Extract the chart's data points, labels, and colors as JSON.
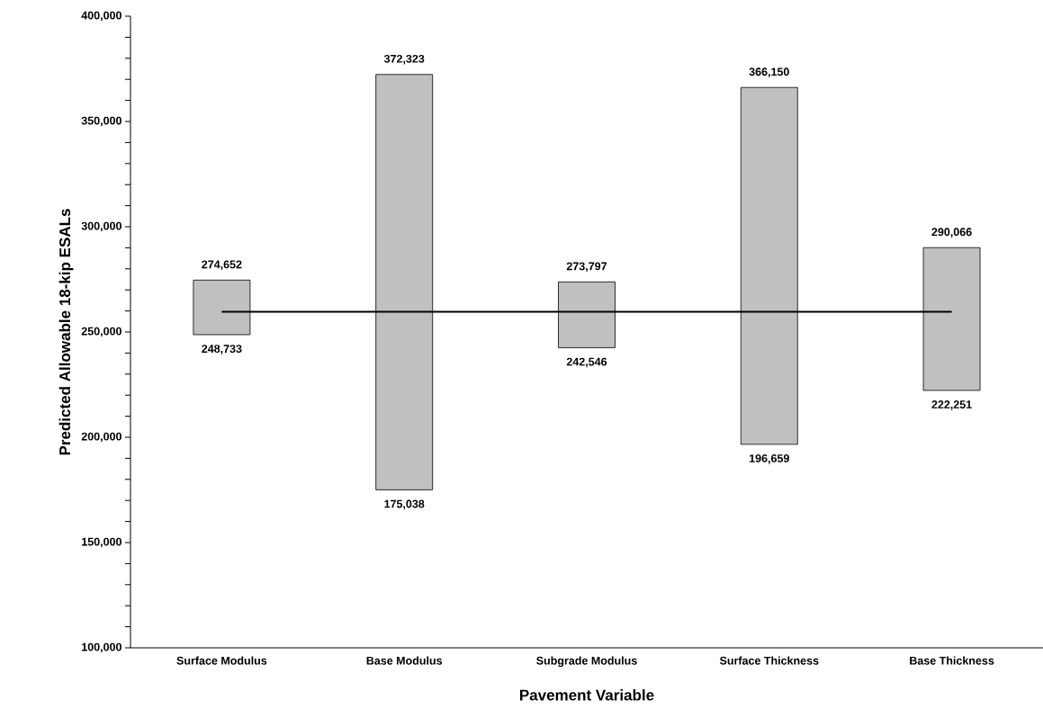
{
  "chart_data": {
    "type": "bar",
    "xlabel": "Pavement Variable",
    "ylabel": "Predicted Allowable 18-kip ESALs",
    "categories": [
      "Surface Modulus",
      "Base Modulus",
      "Subgrade Modulus",
      "Surface Thickness",
      "Base Thickness"
    ],
    "series": [
      {
        "color": "#c0c0c0",
        "base": [
          248733,
          175038,
          242546,
          196659,
          222251
        ],
        "values": [
          25919,
          197285,
          31251,
          169491,
          67815
        ]
      },
      {
        "type": "line",
        "color": "#000000",
        "values": [
          259600,
          259600,
          259600,
          259600,
          259600
        ]
      }
    ],
    "ylim": [
      100000,
      400000
    ],
    "yticks": [
      {
        "value": 100000,
        "label": "100,000"
      },
      {
        "value": 150000,
        "label": "150,000"
      },
      {
        "value": 200000,
        "label": "200,000"
      },
      {
        "value": 250000,
        "label": "250,000"
      },
      {
        "value": 300000,
        "label": "300,000"
      },
      {
        "value": 350000,
        "label": "350,000"
      },
      {
        "value": 400000,
        "label": "400,000"
      }
    ],
    "annotations": [
      {
        "text": "274,652",
        "x": "Surface Modulus",
        "y": 274652
      },
      {
        "text": "248,733",
        "x": "Surface Modulus",
        "y": 248733
      },
      {
        "text": "372,323",
        "x": "Base Modulus",
        "y": 372323
      },
      {
        "text": "175,038",
        "x": "Base Modulus",
        "y": 175038
      },
      {
        "text": "273,797",
        "x": "Subgrade Modulus",
        "y": 273797
      },
      {
        "text": "242,546",
        "x": "Subgrade Modulus",
        "y": 242546
      },
      {
        "text": "366,150",
        "x": "Surface Thickness",
        "y": 366150
      },
      {
        "text": "196,659",
        "x": "Surface Thickness",
        "y": 196659
      },
      {
        "text": "290,066",
        "x": "Base Thickness",
        "y": 290066
      },
      {
        "text": "222,251",
        "x": "Base Thickness",
        "y": 222251
      }
    ]
  }
}
